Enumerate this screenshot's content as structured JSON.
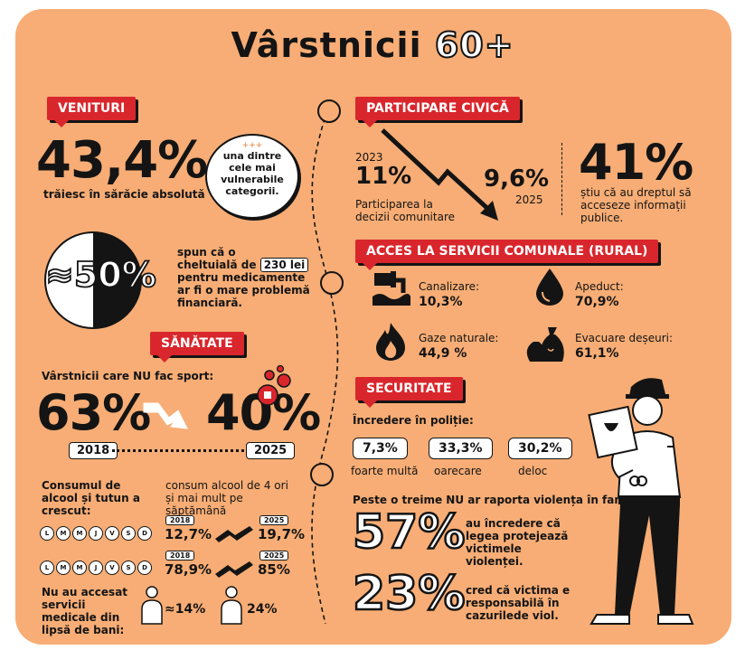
{
  "title": {
    "part1": "Vârstnicii",
    "part2": "60+"
  },
  "venituri": {
    "label": "VENITURI",
    "value": "43,4%",
    "desc": "trăiesc în sărăcie absolută",
    "bubble_stars": "+++",
    "bubble": "una dintre cele mai vulnerabile categorii.",
    "pie_value": "≈50%",
    "spend_text1": "spun că o",
    "spend_text2": "cheltuială de",
    "spend_amount": "230 lei",
    "spend_text3": "pentru medicamente",
    "spend_text4": "ar fi o mare problemă",
    "spend_text5": "financiară."
  },
  "sanatate": {
    "label": "SĂNĂTATE",
    "sport_label": "Vârstnicii care NU fac sport:",
    "value_2018": "63%",
    "year_2018": "2018",
    "value_2025": "40%",
    "year_2025": "2025",
    "alcohol_label": "Consumul de alcool și tutun a crescut:",
    "alcohol_desc": "consum alcool de 4 ori și mai mult pe săptămână",
    "days": [
      "L",
      "M",
      "M",
      "J",
      "V",
      "S",
      "D"
    ],
    "row1": {
      "y1": "2018",
      "v1": "12,7%",
      "y2": "2025",
      "v2": "19,7%"
    },
    "row2": {
      "y1": "2018",
      "v1": "78,9%",
      "y2": "2025",
      "v2": "85%"
    },
    "medical_label": "Nu au accesat servicii medicale din lipsă de bani:",
    "medical_v1": "≈14%",
    "medical_v2": "24%"
  },
  "participare": {
    "label": "PARTICIPARE CIVICĂ",
    "year_2023": "2023",
    "value_2023": "11%",
    "value_2025": "9,6%",
    "year_2025": "2025",
    "desc": "Participarea la decizii comunitare",
    "info_value": "41%",
    "info_desc": "știu că au dreptul să acceseze informații publice."
  },
  "acces": {
    "label": "ACCES LA SERVICII COMUNALE (RURAL)",
    "items": [
      {
        "name": "Canalizare:",
        "value": "10,3%",
        "icon": "pipe-icon"
      },
      {
        "name": "Apeduct:",
        "value": "70,9%",
        "icon": "water-drop-icon"
      },
      {
        "name": "Gaze naturale:",
        "value": "44,9 %",
        "icon": "flame-icon"
      },
      {
        "name": "Evacuare deșeuri:",
        "value": "61,1%",
        "icon": "trash-bags-icon"
      }
    ]
  },
  "securitate": {
    "label": "SECURITATE",
    "trust_label": "Încredere în poliție:",
    "trust": [
      {
        "value": "7,3%",
        "label": "foarte multă"
      },
      {
        "value": "33,3%",
        "label": "oarecare"
      },
      {
        "value": "30,2%",
        "label": "deloc"
      }
    ],
    "violence_label": "Peste o treime NU ar raporta violența în familie.",
    "stat1_value": "57%",
    "stat1_desc": "au încredere că legea protejează victimele violenței.",
    "stat2_value": "23%",
    "stat2_desc": "cred că victima e responsabilă în cazurilede viol."
  }
}
